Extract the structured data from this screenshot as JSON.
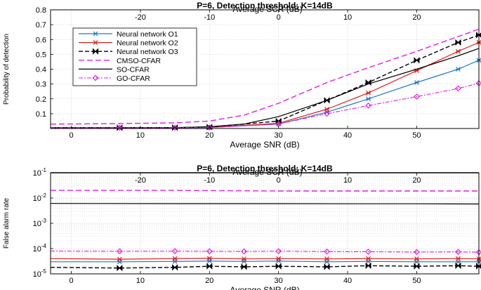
{
  "chart_data": [
    {
      "type": "line",
      "title": "P=6, Detection threshold: K=14dB",
      "xlabel": "Average SNR (dB)",
      "ylabel": "Probability of detection",
      "xlim": [
        -3,
        59
      ],
      "ylim": [
        0,
        0.8
      ],
      "x_ticks": [
        "0",
        "10",
        "20",
        "30",
        "40",
        "50"
      ],
      "y_ticks": [
        "0.1",
        "0.2",
        "0.3",
        "0.4",
        "0.5",
        "0.6",
        "0.7",
        "0.8"
      ],
      "top_axis": {
        "label": "Average SCR (dB)",
        "ticks": [
          "-20",
          "-10",
          "0",
          "10",
          "20"
        ]
      },
      "legend_position": "top-left",
      "grid": true,
      "colors": {
        "n1": "#1f78c8",
        "n2": "#e02020",
        "n3": "#000000",
        "cmso": "#e020e0",
        "so": "#000000",
        "go": "#e020e0"
      },
      "series": [
        {
          "key": "n1",
          "name": "Neural network O1",
          "x": [
            -3,
            7,
            15,
            20,
            30,
            37,
            43,
            50,
            56,
            59
          ],
          "y": [
            0.005,
            0.005,
            0.006,
            0.007,
            0.03,
            0.11,
            0.2,
            0.31,
            0.4,
            0.46
          ]
        },
        {
          "key": "n2",
          "name": "Neural network O2",
          "x": [
            -3,
            7,
            15,
            20,
            30,
            37,
            43,
            50,
            56,
            59
          ],
          "y": [
            0.005,
            0.005,
            0.006,
            0.008,
            0.035,
            0.13,
            0.24,
            0.39,
            0.52,
            0.58
          ]
        },
        {
          "key": "n3",
          "name": "Neural network O3",
          "x": [
            -3,
            7,
            15,
            20,
            30,
            37,
            43,
            50,
            56,
            59
          ],
          "y": [
            0.005,
            0.005,
            0.006,
            0.01,
            0.05,
            0.19,
            0.31,
            0.46,
            0.58,
            0.63
          ]
        },
        {
          "key": "cmso",
          "name": "CMSO-CFAR",
          "x": [
            -3,
            5,
            15,
            20,
            25,
            30,
            37,
            43,
            50,
            56,
            59
          ],
          "y": [
            0.03,
            0.032,
            0.038,
            0.05,
            0.09,
            0.17,
            0.31,
            0.41,
            0.52,
            0.62,
            0.67
          ]
        },
        {
          "key": "so",
          "name": "SO-CFAR",
          "x": [
            -3,
            7,
            15,
            20,
            25,
            30,
            37,
            43,
            50,
            56,
            59
          ],
          "y": [
            0.005,
            0.005,
            0.006,
            0.012,
            0.03,
            0.08,
            0.19,
            0.3,
            0.4,
            0.49,
            0.54
          ]
        },
        {
          "key": "go",
          "name": "GO-CFAR",
          "x": [
            -3,
            7,
            15,
            20,
            30,
            37,
            43,
            50,
            56,
            59
          ],
          "y": [
            0.005,
            0.005,
            0.005,
            0.006,
            0.03,
            0.1,
            0.155,
            0.215,
            0.27,
            0.305
          ]
        }
      ]
    },
    {
      "type": "line",
      "title": "P=6, Detection threshold: K=14dB",
      "xlabel": "Average SNR (dB)",
      "ylabel": "False alarm rate",
      "xlim": [
        -3,
        59
      ],
      "ylim": [
        1e-05,
        0.1
      ],
      "yscale": "log",
      "x_ticks": [
        "0",
        "10",
        "20",
        "30",
        "40",
        "50"
      ],
      "y_ticks": [
        {
          "base": "10",
          "exp": "-5"
        },
        {
          "base": "10",
          "exp": "-4"
        },
        {
          "base": "10",
          "exp": "-3"
        },
        {
          "base": "10",
          "exp": "-2"
        },
        {
          "base": "10",
          "exp": "-1"
        }
      ],
      "top_axis": {
        "label": "Average SCR (dB)",
        "ticks": [
          "-20",
          "-10",
          "0",
          "10",
          "20"
        ]
      },
      "grid": true,
      "colors": {
        "n1": "#1f78c8",
        "n2": "#e02020",
        "n3": "#000000",
        "cmso": "#e020e0",
        "so": "#000000",
        "go": "#e020e0"
      },
      "series": [
        {
          "key": "n1",
          "x": [
            -3,
            7,
            15,
            20,
            25,
            30,
            37,
            43,
            50,
            56,
            59
          ],
          "y": [
            3e-05,
            3e-05,
            3.1e-05,
            3.2e-05,
            3.1e-05,
            3.2e-05,
            3e-05,
            3.1e-05,
            3e-05,
            3e-05,
            3e-05
          ]
        },
        {
          "key": "n2",
          "x": [
            -3,
            7,
            15,
            20,
            25,
            30,
            37,
            43,
            50,
            56,
            59
          ],
          "y": [
            4e-05,
            3.8e-05,
            4e-05,
            4.1e-05,
            3.9e-05,
            4e-05,
            3.9e-05,
            4e-05,
            3.9e-05,
            4e-05,
            3.9e-05
          ]
        },
        {
          "key": "n3",
          "x": [
            -3,
            7,
            15,
            20,
            25,
            30,
            37,
            43,
            50,
            56,
            59
          ],
          "y": [
            1.8e-05,
            1.7e-05,
            1.8e-05,
            2e-05,
            1.9e-05,
            2e-05,
            1.9e-05,
            2.1e-05,
            2e-05,
            2.1e-05,
            2e-05
          ]
        },
        {
          "key": "cmso",
          "x": [
            -3,
            15,
            30,
            43,
            50,
            59
          ],
          "y": [
            0.02,
            0.02,
            0.019,
            0.019,
            0.019,
            0.019
          ]
        },
        {
          "key": "so",
          "x": [
            -3,
            15,
            30,
            43,
            50,
            59
          ],
          "y": [
            0.0061,
            0.006,
            0.006,
            0.0059,
            0.0059,
            0.0058
          ]
        },
        {
          "key": "go",
          "x": [
            -3,
            7,
            15,
            20,
            25,
            30,
            37,
            43,
            50,
            56,
            59
          ],
          "y": [
            8e-05,
            7.8e-05,
            7.9e-05,
            7.8e-05,
            7.7e-05,
            7.9e-05,
            7.6e-05,
            7.5e-05,
            7.3e-05,
            7.4e-05,
            7.2e-05
          ]
        },
        {
          "key": "ref",
          "x": [
            -3,
            59
          ],
          "y": [
            0.1,
            0.1
          ]
        }
      ]
    }
  ]
}
